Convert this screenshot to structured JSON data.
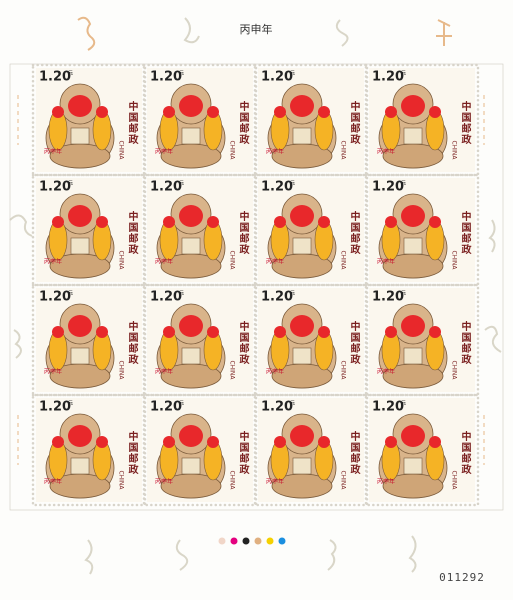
{
  "sheet": {
    "title": "丙申年",
    "serial": "011292"
  },
  "stamp": {
    "denomination": "1.20",
    "unit": "元",
    "country_cn": "中国邮政",
    "country_en": "CHINA",
    "name": "丙申年"
  }
}
